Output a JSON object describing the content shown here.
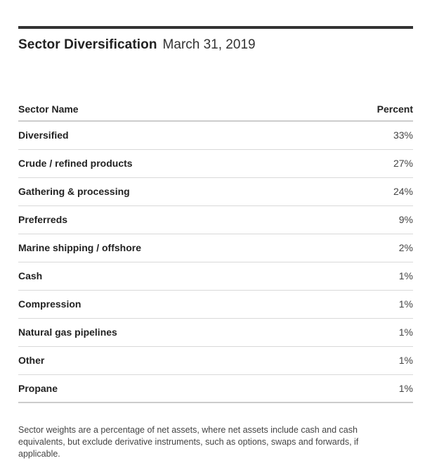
{
  "header": {
    "title": "Sector Diversification",
    "date": "March 31, 2019"
  },
  "table": {
    "columns": [
      "Sector Name",
      "Percent"
    ],
    "rows": [
      {
        "name": "Diversified",
        "percent": "33%"
      },
      {
        "name": "Crude / refined products",
        "percent": "27%"
      },
      {
        "name": "Gathering & processing",
        "percent": "24%"
      },
      {
        "name": "Preferreds",
        "percent": "9%"
      },
      {
        "name": "Marine shipping / offshore",
        "percent": "2%"
      },
      {
        "name": "Cash",
        "percent": "1%"
      },
      {
        "name": "Compression",
        "percent": "1%"
      },
      {
        "name": "Natural gas pipelines",
        "percent": "1%"
      },
      {
        "name": "Other",
        "percent": "1%"
      },
      {
        "name": "Propane",
        "percent": "1%"
      }
    ]
  },
  "footnote": "Sector weights are a percentage of net assets, where net assets include cash and cash equivalents, but exclude derivative instruments, such as options, swaps and forwards, if applicable.",
  "colors": {
    "top_rule": "#333333",
    "text": "#222222",
    "divider": "#d9d9d9"
  }
}
